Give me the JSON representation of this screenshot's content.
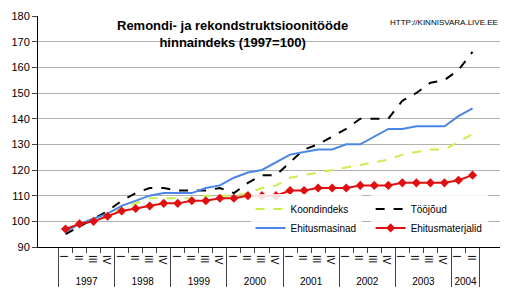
{
  "chart_data": {
    "type": "line",
    "title": "Remondi- ja rekondstruktsioonitööde\nhinnaindeks (1997=100)",
    "annotations": [
      "HTTP://KINNISVARA.LIVE.EE"
    ],
    "categories": [
      [
        "1997",
        "I"
      ],
      [
        "1997",
        "II"
      ],
      [
        "1997",
        "III"
      ],
      [
        "1997",
        "IV"
      ],
      [
        "1998",
        "I"
      ],
      [
        "1998",
        "II"
      ],
      [
        "1998",
        "III"
      ],
      [
        "1998",
        "IV"
      ],
      [
        "1999",
        "I"
      ],
      [
        "1999",
        "II"
      ],
      [
        "1999",
        "III"
      ],
      [
        "1999",
        "IV"
      ],
      [
        "2000",
        "I"
      ],
      [
        "2000",
        "II"
      ],
      [
        "2000",
        "III"
      ],
      [
        "2000",
        "IV"
      ],
      [
        "2001",
        "I"
      ],
      [
        "2001",
        "II"
      ],
      [
        "2001",
        "III"
      ],
      [
        "2001",
        "IV"
      ],
      [
        "2002",
        "I"
      ],
      [
        "2002",
        "II"
      ],
      [
        "2002",
        "III"
      ],
      [
        "2002",
        "IV"
      ],
      [
        "2003",
        "I"
      ],
      [
        "2003",
        "II"
      ],
      [
        "2003",
        "III"
      ],
      [
        "2003",
        "IV"
      ],
      [
        "2004",
        "I"
      ],
      [
        "2004",
        "II"
      ]
    ],
    "series": [
      {
        "name": "Koondindeks",
        "color": "#c8ee50",
        "line_style": "dash",
        "values": [
          96,
          99,
          100,
          102,
          105,
          107,
          109,
          109,
          109,
          109,
          110,
          110,
          110,
          111,
          113,
          114,
          117,
          118,
          119,
          120,
          121,
          122,
          123,
          124,
          126,
          127,
          128,
          128,
          131,
          134
        ]
      },
      {
        "name": "Tööjõud",
        "color": "#000000",
        "line_style": "dash",
        "values": [
          95,
          98,
          101,
          104,
          108,
          111,
          113,
          113,
          112,
          112,
          112,
          113,
          111,
          115,
          118,
          118,
          123,
          128,
          130,
          133,
          136,
          140,
          140,
          140,
          147,
          150,
          154,
          155,
          159,
          166
        ]
      },
      {
        "name": "Ehitusmasinad",
        "color": "#4a86e8",
        "line_style": "solid",
        "values": [
          96,
          99,
          101,
          103,
          106,
          108,
          110,
          111,
          111,
          111,
          113,
          114,
          117,
          119,
          120,
          123,
          126,
          127,
          128,
          128,
          130,
          130,
          133,
          136,
          136,
          137,
          137,
          137,
          141,
          144
        ]
      },
      {
        "name": "Ehitusmaterjalid",
        "color": "#e01010",
        "line_style": "solid",
        "marker": "diamond",
        "values": [
          97,
          99,
          100,
          102,
          104,
          105,
          106,
          107,
          107,
          108,
          108,
          109,
          109,
          110,
          110,
          110,
          112,
          112,
          113,
          113,
          113,
          114,
          114,
          114,
          115,
          115,
          115,
          115,
          116,
          118
        ]
      }
    ],
    "ylim": [
      90,
      180
    ],
    "yticks": [
      90,
      100,
      110,
      120,
      130,
      140,
      150,
      160,
      170,
      180
    ],
    "grid": true,
    "legend": "lower right"
  }
}
